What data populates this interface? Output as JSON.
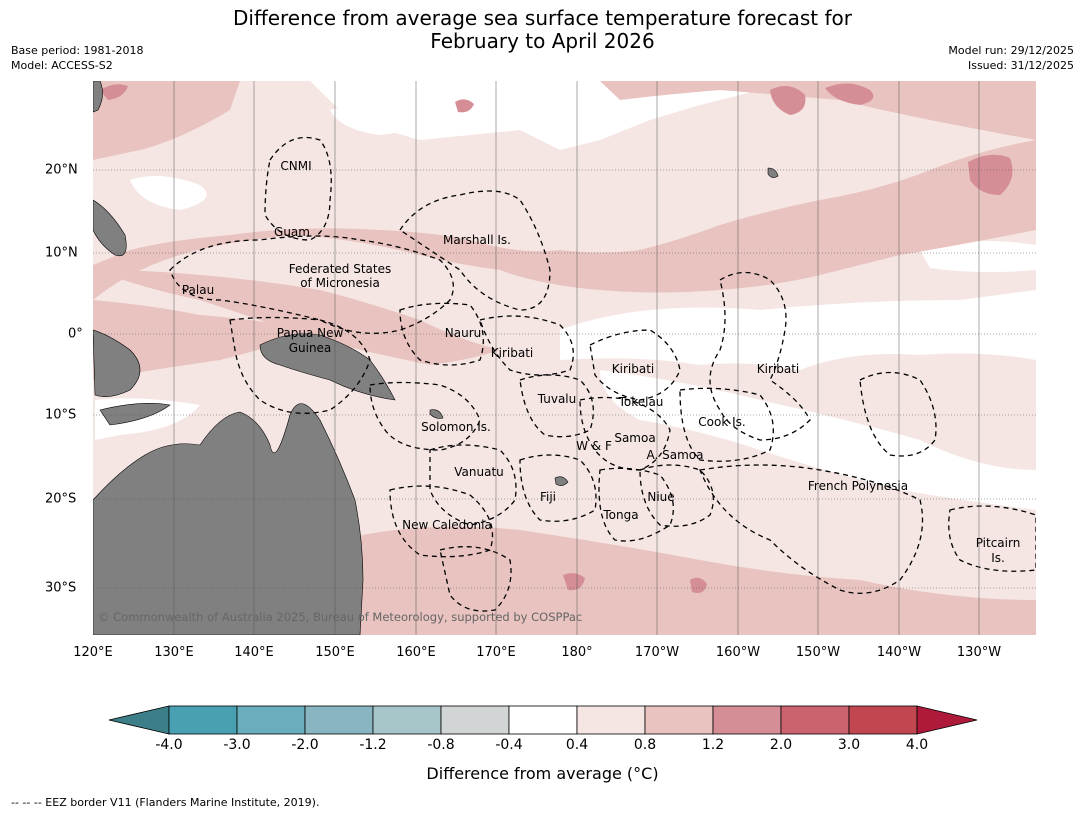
{
  "title_line1": "Difference from average sea surface temperature forecast for",
  "title_line2": "February to April 2026",
  "base_period": "Base period: 1981-2018",
  "model": "Model: ACCESS-S2",
  "model_run": "Model run: 29/12/2025",
  "issued": "Issued: 31/12/2025",
  "lon_ticks": [
    "120°E",
    "130°E",
    "140°E",
    "150°E",
    "160°E",
    "170°E",
    "180°",
    "170°W",
    "160°W",
    "150°W",
    "140°W",
    "130°W"
  ],
  "lat_ticks": [
    "20°N",
    "10°N",
    "0°",
    "10°S",
    "20°S",
    "30°S"
  ],
  "regions": [
    "CNMI",
    "Guam",
    "Marshall Is.",
    "Federated States",
    "of Micronesia",
    "Palau",
    "Papua New",
    "Guinea",
    "Nauru",
    "Kiribati",
    "Kiribati",
    "Kiribati",
    "Tuvalu",
    "Tokelau",
    "Cook Is.",
    "Solomon Is.",
    "Samoa",
    "W & F",
    "A. Samoa",
    "Vanuatu",
    "Fiji",
    "Niue",
    "French Polynesia",
    "Tonga",
    "New Caledonia",
    "Pitcairn",
    "Is."
  ],
  "copyright": "© Commonwealth of Australia 2025, Bureau of Meteorology, supported by COSPPac",
  "colorbar": {
    "ticks": [
      "-4.0",
      "-3.0",
      "-2.0",
      "-1.2",
      "-0.8",
      "-0.4",
      "0.4",
      "0.8",
      "1.2",
      "2.0",
      "3.0",
      "4.0"
    ],
    "colors": [
      "#3d7f89",
      "#4aa0b3",
      "#6aaebd",
      "#89b4c1",
      "#a7c6ca",
      "#d1d5d6",
      "#ffffff",
      "#f5e6e4",
      "#e8c3bf",
      "#d58e96",
      "#cb636e",
      "#c0464f",
      "#b01a3a"
    ],
    "label": "Difference from average (°C)"
  },
  "footnote": "--  --  -- EEZ border V11 (Flanders Marine Institute, 2019)."
}
